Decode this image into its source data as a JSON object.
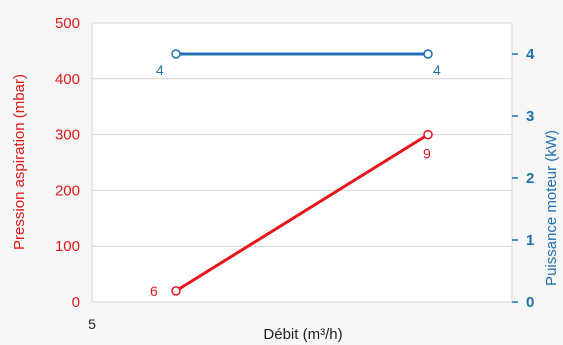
{
  "chart_data": {
    "type": "line",
    "title": "",
    "xlabel": "Débit (m³/h)",
    "x_ticks": [
      "5"
    ],
    "x": [
      1,
      2
    ],
    "ylabel_left": "Pression aspiration (mbar)",
    "ylabel_right": "Puissance moteur (kW)",
    "ylim_left": [
      0,
      500
    ],
    "ylim_right": [
      0,
      4.5
    ],
    "yticks_left": [
      0,
      100,
      200,
      300,
      400,
      500
    ],
    "yticks_right": [
      0,
      1,
      2,
      3,
      4
    ],
    "grid": true,
    "legend": "none",
    "series": [
      {
        "axis": "left",
        "color": "#e8141b",
        "values": [
          20,
          300
        ],
        "labels": [
          "6",
          "9"
        ]
      },
      {
        "axis": "right",
        "color": "#1f6fb4",
        "values": [
          4,
          4
        ],
        "labels": [
          "4",
          "4"
        ]
      }
    ]
  }
}
